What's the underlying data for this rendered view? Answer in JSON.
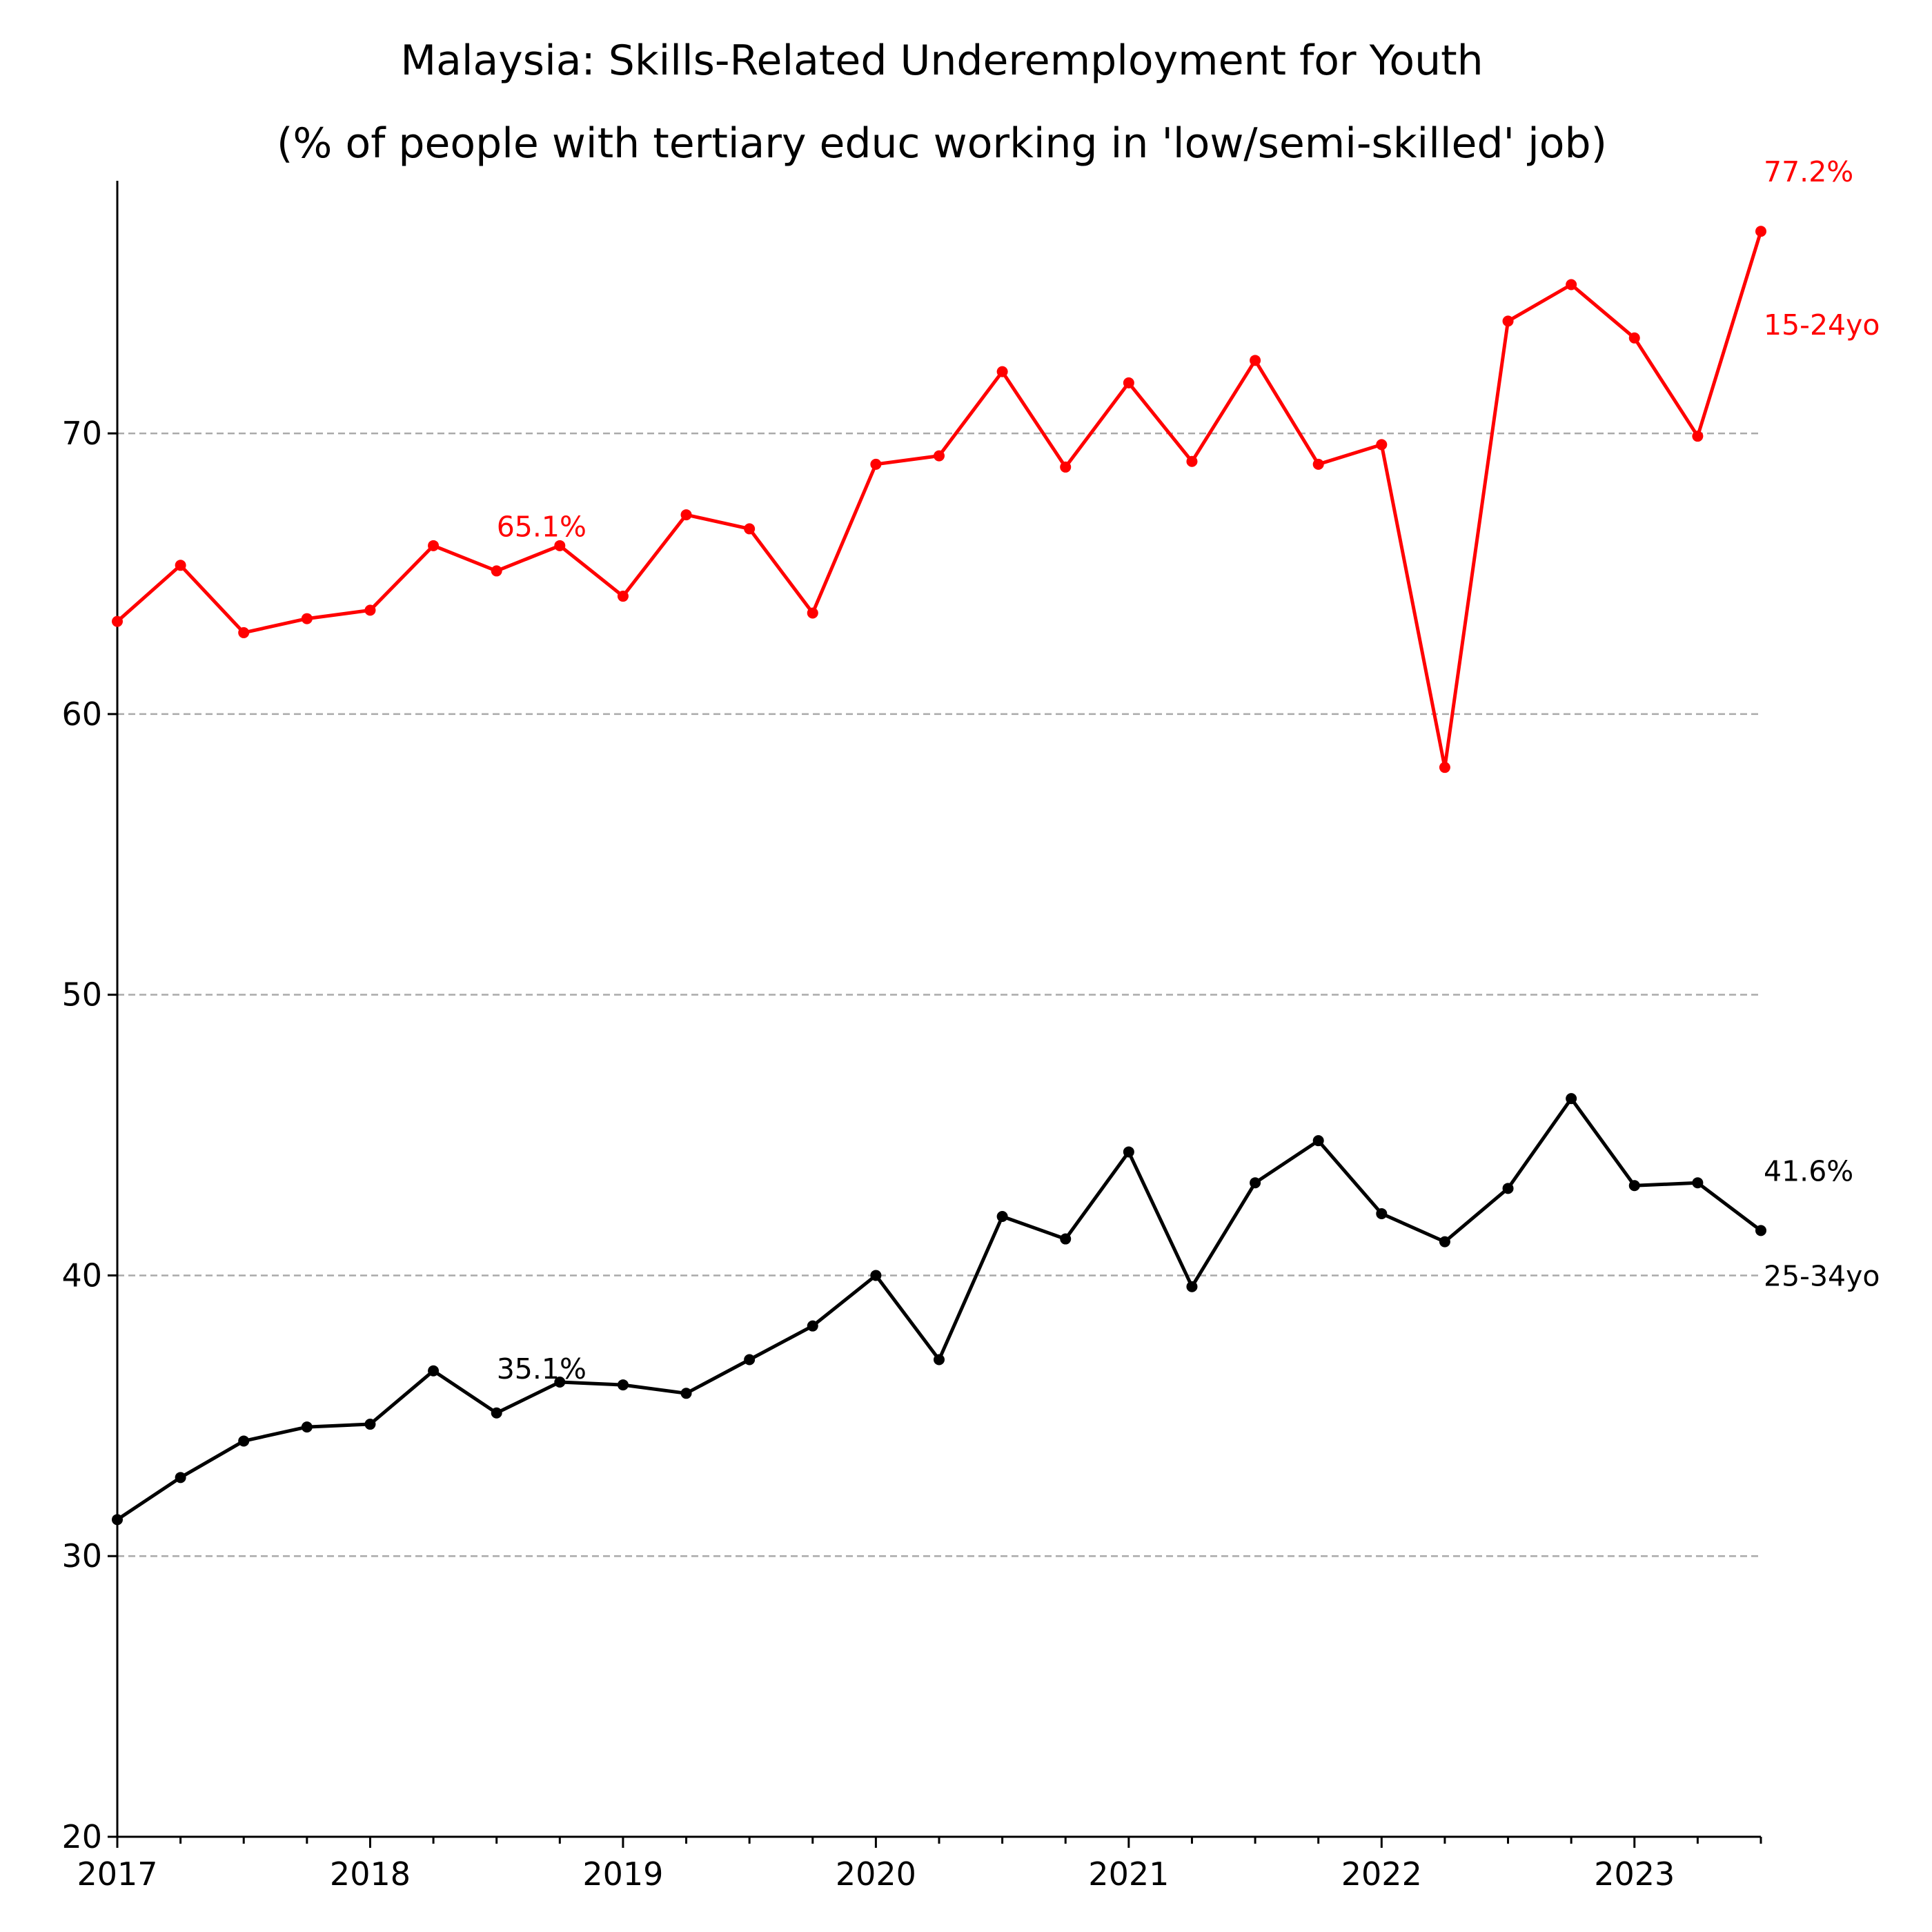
{
  "chart_data": {
    "type": "line",
    "title": "Malaysia: Skills-Related Underemployment for Youth",
    "subtitle": "(% of people with tertiary educ working in 'low/semi-skilled' job)",
    "xlabel": "",
    "ylabel": "",
    "x": [
      "2017-Q1",
      "2017-Q2",
      "2017-Q3",
      "2017-Q4",
      "2018-Q1",
      "2018-Q2",
      "2018-Q3",
      "2018-Q4",
      "2019-Q1",
      "2019-Q2",
      "2019-Q3",
      "2019-Q4",
      "2020-Q1",
      "2020-Q2",
      "2020-Q3",
      "2020-Q4",
      "2021-Q1",
      "2021-Q2",
      "2021-Q3",
      "2021-Q4",
      "2022-Q1",
      "2022-Q2",
      "2022-Q3",
      "2022-Q4",
      "2023-Q1",
      "2023-Q2",
      "2023-Q3"
    ],
    "x_ticks": [
      "2017",
      "2018",
      "2019",
      "2020",
      "2021",
      "2022",
      "2023"
    ],
    "y_ticks": [
      20,
      30,
      40,
      50,
      60,
      70
    ],
    "ylim": [
      20,
      79
    ],
    "grid": "horizontal dashed at 30, 40, 50, 60, 70",
    "legend": "none",
    "series": [
      {
        "name": "15-24yo",
        "color": "#ff0000",
        "values": [
          63.3,
          65.3,
          62.9,
          63.4,
          63.7,
          66.0,
          65.1,
          66.0,
          64.2,
          67.1,
          66.6,
          63.6,
          68.9,
          69.2,
          72.2,
          68.8,
          71.8,
          69.0,
          72.6,
          68.9,
          69.6,
          58.1,
          74.0,
          75.3,
          73.4,
          69.9,
          77.2
        ],
        "annotations": [
          {
            "text": "65.1%",
            "x": "2018-Q3",
            "y": 65.1
          },
          {
            "text": "77.2%",
            "x": "2023-Q3",
            "y": 77.2
          }
        ]
      },
      {
        "name": "25-34yo",
        "color": "#000000",
        "values": [
          31.3,
          32.8,
          34.1,
          34.6,
          34.7,
          36.6,
          35.1,
          36.2,
          36.1,
          35.8,
          37.0,
          38.2,
          40.0,
          37.0,
          42.1,
          41.3,
          44.4,
          39.6,
          43.3,
          44.8,
          42.2,
          41.2,
          43.1,
          46.3,
          43.2,
          43.3,
          41.6
        ],
        "annotations": [
          {
            "text": "35.1%",
            "x": "2018-Q3",
            "y": 35.1
          },
          {
            "text": "41.6%",
            "x": "2023-Q3",
            "y": 41.6
          }
        ]
      }
    ]
  }
}
